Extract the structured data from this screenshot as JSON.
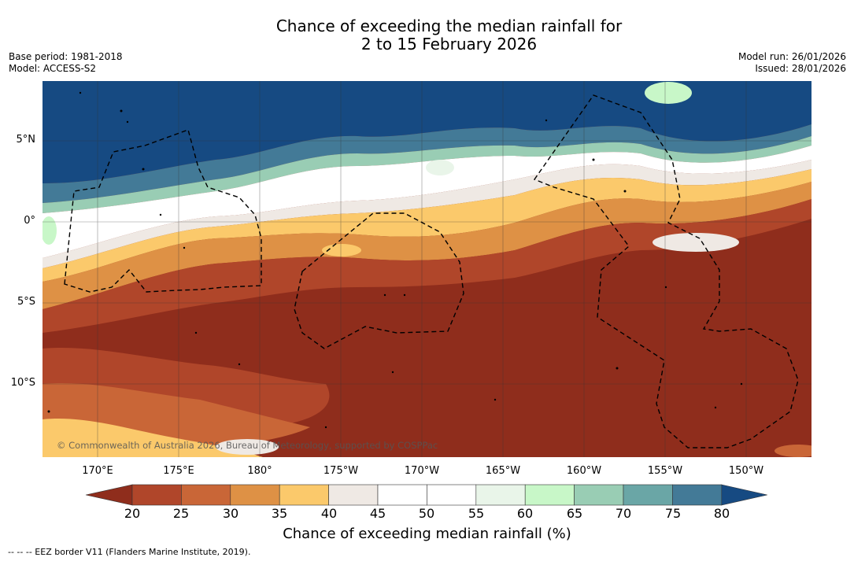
{
  "title": {
    "line1": "Chance of exceeding the median rainfall for",
    "line2": "2 to 15 February 2026"
  },
  "meta_left": {
    "base_period": "Base period: 1981-2018",
    "model": "Model: ACCESS-S2"
  },
  "meta_right": {
    "model_run": "Model run: 26/01/2026",
    "issued": "Issued: 28/01/2026"
  },
  "map": {
    "latitude_labels": [
      "5°N",
      "0°",
      "5°S",
      "10°S"
    ],
    "longitude_labels": [
      "170°E",
      "175°E",
      "180°",
      "175°W",
      "170°W",
      "165°W",
      "160°W",
      "155°W",
      "150°W"
    ],
    "copyright": "© Commonwealth of Australia 2026, Bureau of Meteorology, supported by COSPPac"
  },
  "colorbar": {
    "ticks": [
      "20",
      "25",
      "30",
      "35",
      "40",
      "45",
      "50",
      "55",
      "60",
      "65",
      "70",
      "75",
      "80"
    ],
    "title": "Chance of exceeding median rainfall (%)",
    "colors": [
      "#8f2d1c",
      "#b0462a",
      "#c96637",
      "#de9145",
      "#fbc96b",
      "#efe9e4",
      "#ffffff",
      "#ffffff",
      "#e9f5e9",
      "#c8f7c8",
      "#99cdb4",
      "#6aa6a6",
      "#437a97",
      "#164a82"
    ]
  },
  "footer": {
    "legend": "--  --  -- EEZ border V11 (Flanders Marine Institute, 2019)."
  }
}
